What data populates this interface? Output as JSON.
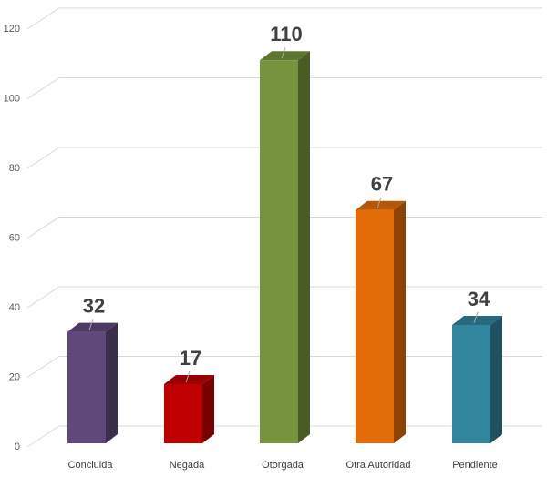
{
  "chart_data": {
    "type": "bar3d",
    "categories": [
      "Concluida",
      "Negada",
      "Otorgada",
      "Otra Autoridad",
      "Pendiente"
    ],
    "values": [
      32,
      17,
      110,
      67,
      34
    ],
    "colors": [
      "#5f497a",
      "#c00000",
      "#77933c",
      "#e36c09",
      "#31859c"
    ],
    "ylim": [
      0,
      120
    ],
    "yticks": [
      0,
      20,
      40,
      60,
      80,
      100,
      120
    ],
    "grid": true
  }
}
